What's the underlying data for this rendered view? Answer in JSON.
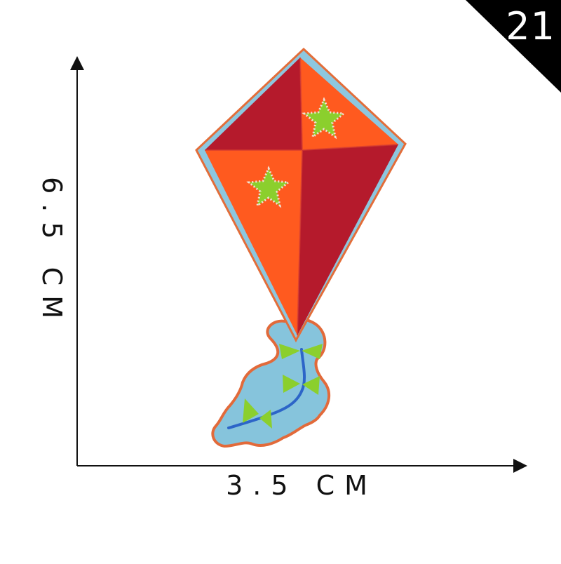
{
  "product_number": "21",
  "dimensions": {
    "width_label": "3.5 CM",
    "height_label": "6.5 CM"
  },
  "patch": {
    "subject": "kite",
    "colors": {
      "dark_red": "#b51a2c",
      "orange": "#ff5a1f",
      "border_blue": "#8dc7df",
      "tail_blue": "#2c65c8",
      "star_green": "#8bcf2d"
    }
  },
  "icons": {
    "corner_badge": "triangle-badge",
    "dimension_arrow": "arrow"
  }
}
